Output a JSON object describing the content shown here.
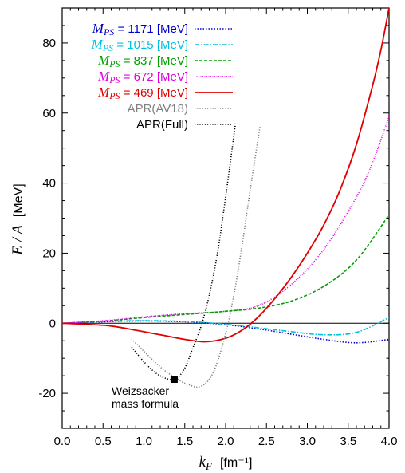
{
  "chart_data": {
    "type": "line",
    "xlabel": "k_F",
    "xunit": "[fm⁻¹]",
    "ylabel": "E / A",
    "yunit": "[MeV]",
    "xlim": [
      0.0,
      4.0
    ],
    "ylim": [
      -30,
      90
    ],
    "xticks": [
      "0.0",
      "0.5",
      "1.0",
      "1.5",
      "2.0",
      "2.5",
      "3.0",
      "3.5",
      "4.0"
    ],
    "yticks": [
      "-20",
      "0",
      "20",
      "40",
      "60",
      "80"
    ],
    "legend_position": "top-left",
    "series": [
      {
        "name_sym": "M",
        "name_sub": "PS",
        "name_val": " = 1171 [MeV]",
        "color": "#0000cc",
        "dash": "1.5,2",
        "points": [
          [
            0,
            0
          ],
          [
            0.4,
            0.3
          ],
          [
            0.8,
            0.6
          ],
          [
            1.2,
            0.6
          ],
          [
            1.6,
            0.3
          ],
          [
            2.0,
            -0.4
          ],
          [
            2.4,
            -1.6
          ],
          [
            2.8,
            -3.1
          ],
          [
            3.2,
            -4.6
          ],
          [
            3.6,
            -5.6
          ],
          [
            4.0,
            -4.6
          ]
        ]
      },
      {
        "name_sym": "M",
        "name_sub": "PS",
        "name_val": " = 1015 [MeV]",
        "color": "#00c0e0",
        "dash": "6,2,1.5,2",
        "points": [
          [
            0,
            0
          ],
          [
            0.4,
            0.4
          ],
          [
            0.8,
            0.7
          ],
          [
            1.2,
            0.7
          ],
          [
            1.6,
            0.4
          ],
          [
            2.0,
            -0.3
          ],
          [
            2.4,
            -1.3
          ],
          [
            2.8,
            -2.4
          ],
          [
            3.2,
            -3.3
          ],
          [
            3.6,
            -2.6
          ],
          [
            4.0,
            1.6
          ]
        ]
      },
      {
        "name_sym": "M",
        "name_sub": "PS",
        "name_val": " = 837 [MeV]",
        "color": "#00a000",
        "dash": "4,2",
        "points": [
          [
            0,
            0
          ],
          [
            0.5,
            0.6
          ],
          [
            1.0,
            1.6
          ],
          [
            1.5,
            2.5
          ],
          [
            2.0,
            3.4
          ],
          [
            2.4,
            4.3
          ],
          [
            2.8,
            6.3
          ],
          [
            3.2,
            10.5
          ],
          [
            3.6,
            18.0
          ],
          [
            4.0,
            31.0
          ]
        ]
      },
      {
        "name_sym": "M",
        "name_sub": "PS",
        "name_val": " = 672 [MeV]",
        "color": "#e000e0",
        "dash": "1,1.5",
        "points": [
          [
            0,
            0
          ],
          [
            0.5,
            0.7
          ],
          [
            1.0,
            1.8
          ],
          [
            1.5,
            2.7
          ],
          [
            2.0,
            3.4
          ],
          [
            2.4,
            5.0
          ],
          [
            2.8,
            11.0
          ],
          [
            3.2,
            21.0
          ],
          [
            3.6,
            36.0
          ],
          [
            3.8,
            46.0
          ],
          [
            4.0,
            59.0
          ]
        ]
      },
      {
        "name_sym": "M",
        "name_sub": "PS",
        "name_val": " = 469 [MeV]",
        "color": "#e00000",
        "dash": "",
        "points": [
          [
            0,
            0
          ],
          [
            0.3,
            -0.3
          ],
          [
            0.6,
            -0.8
          ],
          [
            0.9,
            -2.0
          ],
          [
            1.2,
            -3.3
          ],
          [
            1.5,
            -4.6
          ],
          [
            1.75,
            -5.3
          ],
          [
            2.0,
            -4.3
          ],
          [
            2.2,
            -2.0
          ],
          [
            2.4,
            1.8
          ],
          [
            2.6,
            7.0
          ],
          [
            2.8,
            13.0
          ],
          [
            3.0,
            20.0
          ],
          [
            3.2,
            28.0
          ],
          [
            3.4,
            38.0
          ],
          [
            3.6,
            51.0
          ],
          [
            3.8,
            68.0
          ],
          [
            3.9,
            78.0
          ],
          [
            4.0,
            90.0
          ]
        ]
      },
      {
        "name_sym": "",
        "name_sub": "",
        "name_val": "APR(AV18)",
        "color": "#808080",
        "dash": "1.2,2",
        "points": [
          [
            0.85,
            -4.5
          ],
          [
            1.0,
            -8.0
          ],
          [
            1.2,
            -12.5
          ],
          [
            1.4,
            -15.8
          ],
          [
            1.55,
            -17.6
          ],
          [
            1.7,
            -18.0
          ],
          [
            1.85,
            -14.0
          ],
          [
            2.0,
            -3.0
          ],
          [
            2.1,
            8.0
          ],
          [
            2.2,
            22.0
          ],
          [
            2.3,
            38.0
          ],
          [
            2.42,
            56.0
          ]
        ]
      },
      {
        "name_sym": "",
        "name_sub": "",
        "name_val": "APR(Full)",
        "color": "#000000",
        "dash": "1.2,2",
        "points": [
          [
            0.85,
            -6.8
          ],
          [
            1.0,
            -11.0
          ],
          [
            1.15,
            -14.3
          ],
          [
            1.3,
            -16.0
          ],
          [
            1.4,
            -15.8
          ],
          [
            1.5,
            -12.8
          ],
          [
            1.6,
            -7.0
          ],
          [
            1.7,
            -0.8
          ],
          [
            1.8,
            8.0
          ],
          [
            1.9,
            20.0
          ],
          [
            2.0,
            36.0
          ],
          [
            2.12,
            57.0
          ]
        ]
      }
    ],
    "zero_line": true,
    "marker": {
      "x": 1.37,
      "y": -16.0,
      "label1": "Weizsacker",
      "label2": "mass formula"
    }
  }
}
